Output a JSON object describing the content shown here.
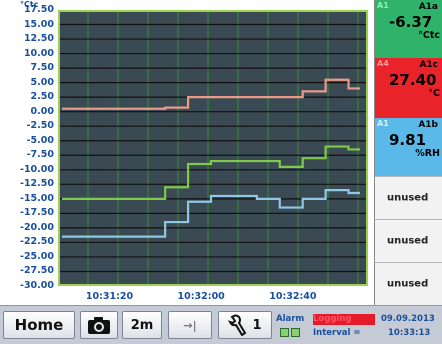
{
  "chart": {
    "unit_top": "°Ctc",
    "y_ticks": [
      "17.50",
      "15.00",
      "12.50",
      "10.00",
      "7.50",
      "5.00",
      "2.50",
      "0.00",
      "-2.50",
      "-5.00",
      "-7.50",
      "-10.00",
      "-12.50",
      "-15.00",
      "-17.50",
      "-20.00",
      "-22.50",
      "-25.00",
      "-27.50",
      "-30.00"
    ],
    "x_ticks": [
      "10:31:20",
      "10:32:00",
      "10:32:40"
    ],
    "grid_color": "#1f6a1f",
    "plot_bg": "#3c4757",
    "border_color": "#9bd14e"
  },
  "chart_data": {
    "type": "line",
    "x": [
      "10:31:00",
      "10:31:10",
      "10:31:20",
      "10:31:30",
      "10:31:40",
      "10:31:50",
      "10:32:00",
      "10:32:10",
      "10:32:20",
      "10:32:30",
      "10:32:40",
      "10:32:50",
      "10:33:00",
      "10:33:10"
    ],
    "series": [
      {
        "color": "#e89a8c",
        "values": [
          0.5,
          0.5,
          0.5,
          0.5,
          0.5,
          0.7,
          2.5,
          2.5,
          2.5,
          2.5,
          2.5,
          3.5,
          5.5,
          4.0
        ]
      },
      {
        "color": "#7ec84a",
        "values": [
          -15.0,
          -15.0,
          -15.0,
          -15.0,
          -15.0,
          -13.0,
          -9.0,
          -8.5,
          -8.5,
          -8.5,
          -9.5,
          -8.0,
          -6.0,
          -6.5
        ]
      },
      {
        "color": "#8ec8e6",
        "values": [
          -21.5,
          -21.5,
          -21.5,
          -21.5,
          -21.5,
          -19.0,
          -15.5,
          -14.5,
          -14.5,
          -15.0,
          -16.5,
          -15.0,
          -13.5,
          -14.0
        ]
      }
    ],
    "xlabel": "",
    "ylabel": "",
    "ylim": [
      -30,
      17.5
    ],
    "grid": true
  },
  "channels": [
    {
      "tag": "A1",
      "name": "A1a",
      "value": "-6.37",
      "unit": "°Ctc",
      "bg": "#2fb36a",
      "fg": "#000000",
      "tag_color": "#8ff0b0"
    },
    {
      "tag": "A4",
      "name": "A1c",
      "value": "27.40",
      "unit": "°C",
      "bg": "#e8242a",
      "fg": "#000000",
      "tag_color": "#ff9999"
    },
    {
      "tag": "A1",
      "name": "A1b",
      "value": "9.81",
      "unit": "%RH",
      "bg": "#5ab9e8",
      "fg": "#000000",
      "tag_color": "#d6f0ff"
    }
  ],
  "unused": [
    "unused",
    "unused",
    "unused"
  ],
  "bottom": {
    "home": "Home",
    "zoom": "2m",
    "cursor": "→|",
    "wrench_num": "1",
    "alarm": "Alarm",
    "rec": "Logging",
    "interval": "Interval =",
    "date": "09.09.2013",
    "time": "10:33:13"
  }
}
